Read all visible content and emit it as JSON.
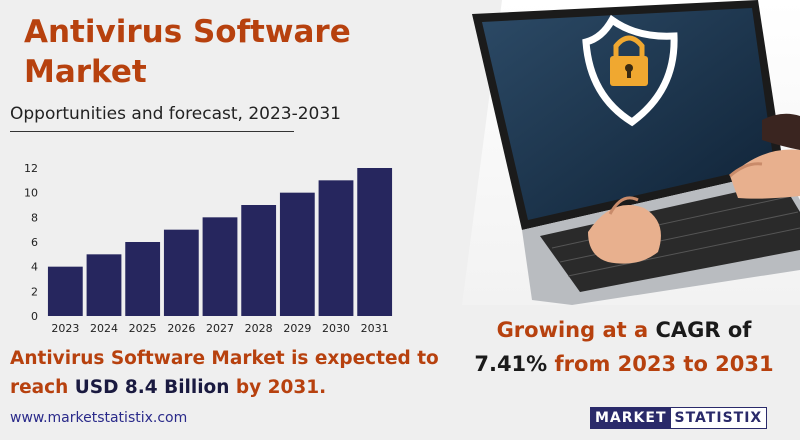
{
  "header": {
    "title": "Antivirus Software Market",
    "subtitle": "Opportunities and forecast, 2023-2031"
  },
  "chart_data": {
    "type": "bar",
    "categories": [
      "2023",
      "2024",
      "2025",
      "2026",
      "2027",
      "2028",
      "2029",
      "2030",
      "2031"
    ],
    "values": [
      4,
      5,
      6,
      7,
      8,
      9,
      10,
      11,
      12
    ],
    "title": "",
    "xlabel": "",
    "ylabel": "",
    "ylim": [
      0,
      12
    ],
    "yticks": [
      0,
      2,
      4,
      6,
      8,
      10,
      12
    ],
    "grid": false,
    "bar_color": "#26265e"
  },
  "tagline": {
    "part1": "Antivirus Software Market is expected to reach ",
    "highlight": "USD 8.4 Billion",
    "part2": " by 2031."
  },
  "cagr": {
    "part1": "Growing at a ",
    "highlight1": "CAGR of",
    "highlight2": "7.41%",
    "part2": " from 2023 to 2031"
  },
  "footer": {
    "url": "www.marketstatistix.com"
  },
  "logo": {
    "left": "MARKET",
    "right": "STATISTIX"
  },
  "colors": {
    "accent": "#b7410e",
    "navy": "#26265e"
  },
  "photo": {
    "icon": "shield-lock-icon"
  }
}
